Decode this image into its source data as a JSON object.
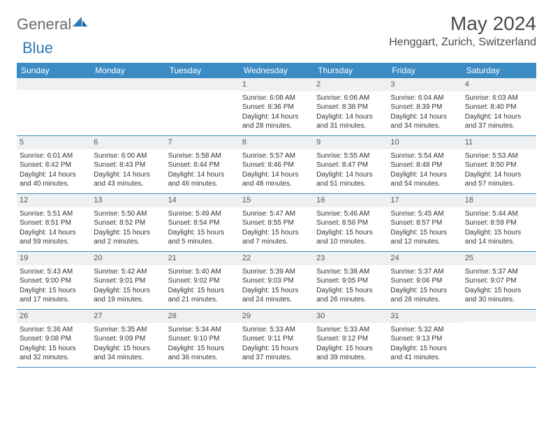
{
  "logo": {
    "text1": "General",
    "text2": "Blue"
  },
  "title": "May 2024",
  "location": "Henggart, Zurich, Switzerland",
  "colors": {
    "header_band": "#3b8bc4",
    "daynum_band": "#eef0f1",
    "text": "#333333",
    "rule": "#3b8bc4"
  },
  "weekdays": [
    "Sunday",
    "Monday",
    "Tuesday",
    "Wednesday",
    "Thursday",
    "Friday",
    "Saturday"
  ],
  "weeks": [
    [
      {
        "n": "",
        "sr": "",
        "ss": "",
        "dl": ""
      },
      {
        "n": "",
        "sr": "",
        "ss": "",
        "dl": ""
      },
      {
        "n": "",
        "sr": "",
        "ss": "",
        "dl": ""
      },
      {
        "n": "1",
        "sr": "Sunrise: 6:08 AM",
        "ss": "Sunset: 8:36 PM",
        "dl": "Daylight: 14 hours and 28 minutes."
      },
      {
        "n": "2",
        "sr": "Sunrise: 6:06 AM",
        "ss": "Sunset: 8:38 PM",
        "dl": "Daylight: 14 hours and 31 minutes."
      },
      {
        "n": "3",
        "sr": "Sunrise: 6:04 AM",
        "ss": "Sunset: 8:39 PM",
        "dl": "Daylight: 14 hours and 34 minutes."
      },
      {
        "n": "4",
        "sr": "Sunrise: 6:03 AM",
        "ss": "Sunset: 8:40 PM",
        "dl": "Daylight: 14 hours and 37 minutes."
      }
    ],
    [
      {
        "n": "5",
        "sr": "Sunrise: 6:01 AM",
        "ss": "Sunset: 8:42 PM",
        "dl": "Daylight: 14 hours and 40 minutes."
      },
      {
        "n": "6",
        "sr": "Sunrise: 6:00 AM",
        "ss": "Sunset: 8:43 PM",
        "dl": "Daylight: 14 hours and 43 minutes."
      },
      {
        "n": "7",
        "sr": "Sunrise: 5:58 AM",
        "ss": "Sunset: 8:44 PM",
        "dl": "Daylight: 14 hours and 46 minutes."
      },
      {
        "n": "8",
        "sr": "Sunrise: 5:57 AM",
        "ss": "Sunset: 8:46 PM",
        "dl": "Daylight: 14 hours and 48 minutes."
      },
      {
        "n": "9",
        "sr": "Sunrise: 5:55 AM",
        "ss": "Sunset: 8:47 PM",
        "dl": "Daylight: 14 hours and 51 minutes."
      },
      {
        "n": "10",
        "sr": "Sunrise: 5:54 AM",
        "ss": "Sunset: 8:48 PM",
        "dl": "Daylight: 14 hours and 54 minutes."
      },
      {
        "n": "11",
        "sr": "Sunrise: 5:53 AM",
        "ss": "Sunset: 8:50 PM",
        "dl": "Daylight: 14 hours and 57 minutes."
      }
    ],
    [
      {
        "n": "12",
        "sr": "Sunrise: 5:51 AM",
        "ss": "Sunset: 8:51 PM",
        "dl": "Daylight: 14 hours and 59 minutes."
      },
      {
        "n": "13",
        "sr": "Sunrise: 5:50 AM",
        "ss": "Sunset: 8:52 PM",
        "dl": "Daylight: 15 hours and 2 minutes."
      },
      {
        "n": "14",
        "sr": "Sunrise: 5:49 AM",
        "ss": "Sunset: 8:54 PM",
        "dl": "Daylight: 15 hours and 5 minutes."
      },
      {
        "n": "15",
        "sr": "Sunrise: 5:47 AM",
        "ss": "Sunset: 8:55 PM",
        "dl": "Daylight: 15 hours and 7 minutes."
      },
      {
        "n": "16",
        "sr": "Sunrise: 5:46 AM",
        "ss": "Sunset: 8:56 PM",
        "dl": "Daylight: 15 hours and 10 minutes."
      },
      {
        "n": "17",
        "sr": "Sunrise: 5:45 AM",
        "ss": "Sunset: 8:57 PM",
        "dl": "Daylight: 15 hours and 12 minutes."
      },
      {
        "n": "18",
        "sr": "Sunrise: 5:44 AM",
        "ss": "Sunset: 8:59 PM",
        "dl": "Daylight: 15 hours and 14 minutes."
      }
    ],
    [
      {
        "n": "19",
        "sr": "Sunrise: 5:43 AM",
        "ss": "Sunset: 9:00 PM",
        "dl": "Daylight: 15 hours and 17 minutes."
      },
      {
        "n": "20",
        "sr": "Sunrise: 5:42 AM",
        "ss": "Sunset: 9:01 PM",
        "dl": "Daylight: 15 hours and 19 minutes."
      },
      {
        "n": "21",
        "sr": "Sunrise: 5:40 AM",
        "ss": "Sunset: 9:02 PM",
        "dl": "Daylight: 15 hours and 21 minutes."
      },
      {
        "n": "22",
        "sr": "Sunrise: 5:39 AM",
        "ss": "Sunset: 9:03 PM",
        "dl": "Daylight: 15 hours and 24 minutes."
      },
      {
        "n": "23",
        "sr": "Sunrise: 5:38 AM",
        "ss": "Sunset: 9:05 PM",
        "dl": "Daylight: 15 hours and 26 minutes."
      },
      {
        "n": "24",
        "sr": "Sunrise: 5:37 AM",
        "ss": "Sunset: 9:06 PM",
        "dl": "Daylight: 15 hours and 28 minutes."
      },
      {
        "n": "25",
        "sr": "Sunrise: 5:37 AM",
        "ss": "Sunset: 9:07 PM",
        "dl": "Daylight: 15 hours and 30 minutes."
      }
    ],
    [
      {
        "n": "26",
        "sr": "Sunrise: 5:36 AM",
        "ss": "Sunset: 9:08 PM",
        "dl": "Daylight: 15 hours and 32 minutes."
      },
      {
        "n": "27",
        "sr": "Sunrise: 5:35 AM",
        "ss": "Sunset: 9:09 PM",
        "dl": "Daylight: 15 hours and 34 minutes."
      },
      {
        "n": "28",
        "sr": "Sunrise: 5:34 AM",
        "ss": "Sunset: 9:10 PM",
        "dl": "Daylight: 15 hours and 36 minutes."
      },
      {
        "n": "29",
        "sr": "Sunrise: 5:33 AM",
        "ss": "Sunset: 9:11 PM",
        "dl": "Daylight: 15 hours and 37 minutes."
      },
      {
        "n": "30",
        "sr": "Sunrise: 5:33 AM",
        "ss": "Sunset: 9:12 PM",
        "dl": "Daylight: 15 hours and 39 minutes."
      },
      {
        "n": "31",
        "sr": "Sunrise: 5:32 AM",
        "ss": "Sunset: 9:13 PM",
        "dl": "Daylight: 15 hours and 41 minutes."
      },
      {
        "n": "",
        "sr": "",
        "ss": "",
        "dl": ""
      }
    ]
  ]
}
